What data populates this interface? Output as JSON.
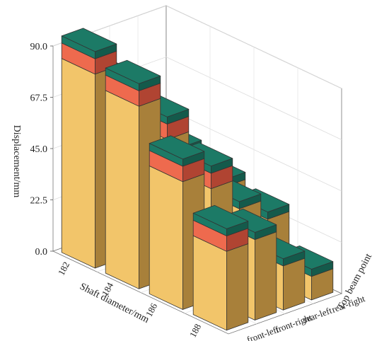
{
  "chart_data": {
    "type": "bar3d",
    "title": "",
    "ylabel": "Displacement/mm",
    "xlabel": "Shaft diameter/mm",
    "zlabel": "Top beam point",
    "x_categories": [
      "182",
      "184",
      "186",
      "188"
    ],
    "z_categories": [
      "rear-right",
      "rear-left",
      "front-right",
      "front-left"
    ],
    "ylim": [
      0,
      90
    ],
    "yticks": [
      "0.0",
      "22.5",
      "45.0",
      "67.5",
      "90.0"
    ],
    "grid": true,
    "colors": {
      "body": "#f2c56a",
      "body_side": "#a8803a",
      "top": "#1c7a66",
      "top_side": "#145a4b",
      "mid": "#ee6a4e",
      "mid_side": "#b04432"
    },
    "series": [
      {
        "x": "182",
        "values": [
          39.5,
          52.0,
          76.5,
          95.0
        ]
      },
      {
        "x": "184",
        "values": [
          34.5,
          44.5,
          71.0,
          90.0
        ]
      },
      {
        "x": "186",
        "values": [
          29.5,
          38.5,
          58.5,
          66.0
        ]
      },
      {
        "x": "188",
        "values": [
          13.5,
          22.5,
          38.5,
          44.5
        ]
      }
    ]
  }
}
